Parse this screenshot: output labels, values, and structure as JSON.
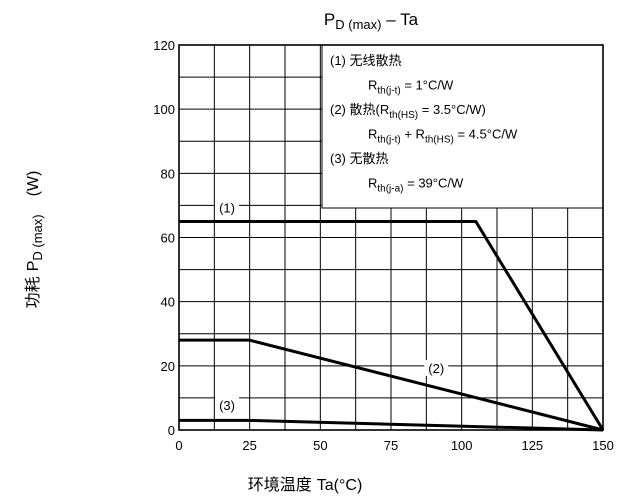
{
  "chart_data": {
    "type": "line",
    "title": "P_D (max) – Ta",
    "title_parts": {
      "p": "P",
      "d": "D",
      "max": " (max)",
      "rest": " – Ta"
    },
    "xlabel": {
      "cn": "环境温度 ",
      "en": "Ta(°C)"
    },
    "ylabel": {
      "cn": "功耗 ",
      "p": "P",
      "d": "D",
      "max": " (max)",
      "unit": "(W)"
    },
    "xlim": [
      0,
      150
    ],
    "ylim": [
      0,
      120
    ],
    "x_ticks": [
      0,
      25,
      50,
      75,
      100,
      125,
      150
    ],
    "y_ticks": [
      0,
      20,
      40,
      60,
      80,
      100,
      120
    ],
    "grid": {
      "x_step": 12.5,
      "y_step": 10,
      "on": true
    },
    "series": [
      {
        "label": "(1)",
        "points": [
          [
            0,
            65
          ],
          [
            105,
            65
          ],
          [
            150,
            0
          ]
        ],
        "label_at": [
          17,
          69
        ]
      },
      {
        "label": "(2)",
        "points": [
          [
            0,
            28
          ],
          [
            25,
            28
          ],
          [
            150,
            0
          ]
        ],
        "label_at": [
          91,
          19
        ]
      },
      {
        "label": "(3)",
        "points": [
          [
            0,
            3
          ],
          [
            25,
            3
          ],
          [
            150,
            0
          ]
        ],
        "label_at": [
          17,
          7.5
        ]
      }
    ],
    "legend": {
      "placement": "top-right",
      "lines": [
        [
          {
            "t": "(1)  "
          },
          {
            "t": "无线散热",
            "cn": true
          }
        ],
        [
          {
            "t": "R"
          },
          {
            "t": "th(j-t)",
            "sub": true
          },
          {
            "t": " = 1°C/W"
          }
        ],
        [
          {
            "t": "(2)  "
          },
          {
            "t": "散热",
            "cn": true
          },
          {
            "t": "(R"
          },
          {
            "t": "th(HS)",
            "sub": true
          },
          {
            "t": " = 3.5°C/W)"
          }
        ],
        [
          {
            "t": "R"
          },
          {
            "t": "th(j-t)",
            "sub": true
          },
          {
            "t": " + R"
          },
          {
            "t": "th(HS)",
            "sub": true
          },
          {
            "t": " = 4.5°C/W"
          }
        ],
        [
          {
            "t": "(3)  "
          },
          {
            "t": "无散热",
            "cn": true
          }
        ],
        [
          {
            "t": "R"
          },
          {
            "t": "th(j-a)",
            "sub": true
          },
          {
            "t": " = 39°C/W"
          }
        ]
      ]
    }
  }
}
